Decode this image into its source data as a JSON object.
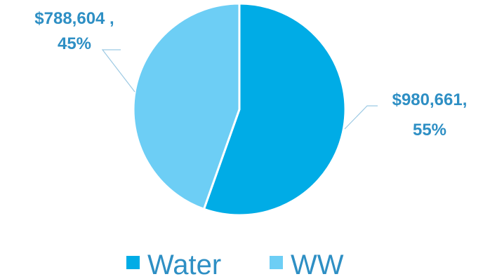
{
  "chart_data": {
    "type": "pie",
    "title": "",
    "categories": [
      "Water",
      "WW"
    ],
    "values": [
      980661,
      788604
    ],
    "percentages": [
      55,
      45
    ],
    "colors": [
      "#00ace6",
      "#6dcef5"
    ],
    "label_color": "#2e8fc4",
    "leader_line_color": "#9cc9e3",
    "legend_position": "bottom",
    "data_labels": [
      {
        "value_text": "$980,661,",
        "percent_text": "55%"
      },
      {
        "value_text": "$788,604 ,",
        "percent_text": "45%"
      }
    ],
    "legend": [
      {
        "label": "Water",
        "color": "#00ace6"
      },
      {
        "label": "WW",
        "color": "#6dcef5"
      }
    ]
  }
}
